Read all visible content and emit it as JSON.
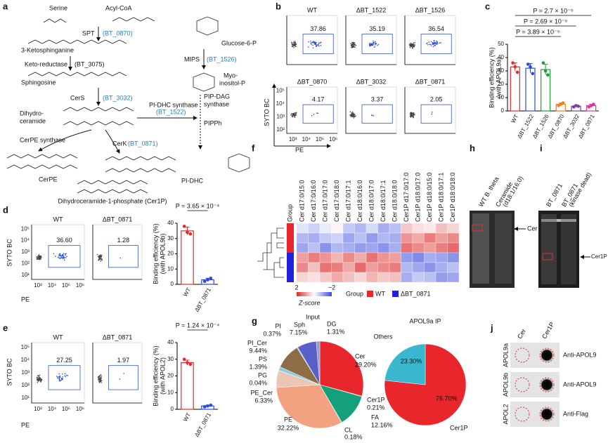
{
  "a": {
    "letter": "a",
    "labels": [
      "Serine",
      "Acyl-CoA",
      "SPT",
      "(BT_0870)",
      "3-Ketosphinganine",
      "Keto-reductase",
      "(BT_3075)",
      "Sphingosine",
      "CerS",
      "(BT_3032)",
      "Dihydro-",
      "ceramide",
      "Glucose-6-P",
      "MIPS",
      "(BT_1526)",
      "Myo-",
      "inositol-P",
      "PIP-DAG",
      "synthase",
      "PI-DHC synthase",
      "(BT_1522)",
      "PIPPh",
      "CerPE synthase",
      "CerK",
      "(BT_0871)",
      "CerPE",
      "PI-DHC",
      "Dihydroceramide-1-phosphate (Cer1P)"
    ]
  },
  "b": {
    "letter": "b",
    "y_label": "SYTO BC",
    "x_label": "PE",
    "y_ticks": [
      "10⁵",
      "10⁴",
      "10³",
      "10²"
    ],
    "x_ticks": [
      "10³",
      "10⁴",
      "10⁵",
      "10⁶"
    ],
    "plots": [
      {
        "title": "WT",
        "gate": "37.86"
      },
      {
        "title": "ΔBT_1522",
        "gate": "35.19"
      },
      {
        "title": "ΔBT_1526",
        "gate": "36.54"
      },
      {
        "title": "ΔBT_0870",
        "gate": "4.17"
      },
      {
        "title": "ΔBT_3032",
        "gate": "3.37"
      },
      {
        "title": "ΔBT_0871",
        "gate": "2.05"
      }
    ]
  },
  "c": {
    "letter": "c",
    "type": "bar",
    "y_label": [
      "Binding efficiency (%)",
      "(with APOL9a)"
    ],
    "categories": [
      "WT",
      "ΔBT_1522",
      "ΔBT_1526",
      "ΔBT_0870",
      "ΔBT_3032",
      "ΔBT_0871"
    ],
    "values": [
      33,
      32,
      31,
      5,
      3.5,
      4
    ],
    "errors": [
      3,
      3.5,
      4,
      1,
      0.7,
      1
    ],
    "points": [
      [
        36,
        33,
        29
      ],
      [
        35,
        33,
        28
      ],
      [
        36,
        30,
        27
      ],
      [
        4,
        5,
        6
      ],
      [
        3,
        4,
        3.5
      ],
      [
        3,
        4,
        5
      ]
    ],
    "colors": [
      "#e8262b",
      "#2b4bd6",
      "#1f9a3a",
      "#f07f1f",
      "#7b3fa0",
      "#d6359a"
    ],
    "ylim": [
      0,
      50
    ],
    "yticks": [
      0,
      10,
      20,
      30,
      40,
      50
    ],
    "pvalues": [
      "P = 2.7 × 10⁻⁵",
      "P = 2.69 × 10⁻⁵",
      "P = 3.89 × 10⁻⁵"
    ]
  },
  "d": {
    "letter": "d",
    "flow": {
      "y_label": "SYTO BC",
      "x_label": "PE",
      "y_ticks": [
        "10⁵",
        "10⁴",
        "10³",
        "10²",
        "10¹"
      ],
      "x_ticks": [
        "10³",
        "10⁴",
        "10⁵",
        "10⁶"
      ],
      "plots": [
        {
          "title": "WT",
          "gate": "36.60"
        },
        {
          "title": "ΔBT_0871",
          "gate": "1.28"
        }
      ]
    },
    "bars": {
      "type": "bar",
      "y_label": [
        "Binding efficiency (%)",
        "(with APOL9b)"
      ],
      "categories": [
        "WT",
        "ΔBT_0871"
      ],
      "values": [
        35,
        3
      ],
      "errors": [
        2.5,
        1
      ],
      "points": [
        [
          38,
          34,
          33
        ],
        [
          2,
          3,
          4
        ]
      ],
      "colors": [
        "#e8262b",
        "#2b4bd6"
      ],
      "ylim": [
        0,
        40
      ],
      "yticks": [
        0,
        10,
        20,
        30,
        40
      ],
      "pvalues": [
        "P = 3.65 × 10⁻⁴"
      ]
    }
  },
  "e": {
    "letter": "e",
    "flow": {
      "y_label": "SYTO BC",
      "x_label": "PE",
      "y_ticks": [
        "10⁵",
        "10⁴",
        "10³",
        "10²",
        "10¹"
      ],
      "x_ticks": [
        "10³",
        "10⁴",
        "10⁵",
        "10⁶"
      ],
      "plots": [
        {
          "title": "WT",
          "gate": "27.25"
        },
        {
          "title": "ΔBT_0871",
          "gate": "1.97"
        }
      ]
    },
    "bars": {
      "type": "bar",
      "y_label": [
        "Binding efficiency (%)",
        "(with APOL2)"
      ],
      "categories": [
        "WT",
        "ΔBT_0871"
      ],
      "values": [
        28,
        2
      ],
      "errors": [
        1.5,
        0.5
      ],
      "points": [
        [
          30,
          28,
          27
        ],
        [
          1.5,
          2,
          2.5
        ]
      ],
      "colors": [
        "#e8262b",
        "#2b4bd6"
      ],
      "ylim": [
        0,
        40
      ],
      "yticks": [
        0,
        10,
        20,
        30,
        40
      ],
      "pvalues": [
        "P = 1.24 × 10⁻⁴"
      ]
    }
  },
  "f": {
    "letter": "f",
    "type": "heatmap",
    "group_label": "Group",
    "columns": [
      "Cer d17:0/15:0",
      "Cer d17:0/16:0",
      "Cer d17:0/17:0",
      "Cer d17:0/18:0",
      "Cer d17:0/17:1",
      "Cer d18:0/16:0",
      "Cer d18:0/17:0",
      "Cer d18:0/17:1",
      "Cer d18:0/18:0",
      "Cer1P d17:0/17:0",
      "Cer1P d18:0/17:0",
      "Cer1P d18:0/15:0",
      "Cer1P d18:0/17:1",
      "Cer1P d18:0/18:0"
    ],
    "row_groups": [
      0,
      0,
      0,
      1,
      1,
      1
    ],
    "z": [
      [
        -0.3,
        -0.5,
        -0.2,
        0.1,
        -0.6,
        -0.8,
        -0.4,
        -0.9,
        -0.7,
        0.5,
        0.3,
        0.2,
        0.6,
        0.4
      ],
      [
        -0.8,
        -0.9,
        -0.6,
        -0.5,
        -1.0,
        -0.7,
        -1.1,
        -0.8,
        -0.9,
        1.0,
        0.8,
        1.2,
        0.9,
        1.1
      ],
      [
        -1.0,
        -0.7,
        -1.2,
        -0.8,
        -0.9,
        -1.1,
        -1.0,
        -1.2,
        -0.9,
        1.3,
        1.1,
        0.9,
        1.2,
        1.4
      ],
      [
        0.9,
        1.2,
        1.0,
        0.7,
        1.1,
        0.8,
        1.3,
        1.0,
        0.9,
        -1.1,
        -1.3,
        -0.9,
        -1.0,
        -1.2
      ],
      [
        1.1,
        0.6,
        1.3,
        1.2,
        0.8,
        1.4,
        0.9,
        1.1,
        1.2,
        -0.8,
        -1.0,
        -1.2,
        -0.9,
        -0.7
      ],
      [
        0.4,
        0.3,
        0.5,
        0.8,
        0.6,
        0.4,
        0.7,
        0.5,
        0.6,
        -0.9,
        -0.6,
        -0.7,
        -1.1,
        -1.0
      ]
    ],
    "groups": [
      {
        "name": "WT",
        "color": "#e8262b"
      },
      {
        "name": "ΔBT_0871",
        "color": "#2222dd"
      }
    ],
    "legend_title": "Group",
    "colorbar": {
      "ticks": [
        2,
        {
          "value": -2,
          "label": "−2"
        }
      ],
      "label": "Z-score"
    }
  },
  "g": {
    "letter": "g",
    "charts": [
      {
        "type": "pie",
        "title": "Input",
        "names": [
          "Cer",
          "Cer1P",
          "FA",
          "CL",
          "PE",
          "PE_Cer",
          "PG",
          "PS",
          "PI_Cer",
          "PI",
          "Sph",
          "DG"
        ],
        "values": [
          29.2,
          0.21,
          12.16,
          0.18,
          32.22,
          6.33,
          0.04,
          1.39,
          9.44,
          0.37,
          7.15,
          1.31
        ],
        "value_labels": [
          "29.20%",
          "0.21%",
          "12.16%",
          "0.18%",
          "32.22%",
          "6.33%",
          "0.04%",
          "1.39%",
          "9.44%",
          "0.37%",
          "7.15%",
          "1.31%"
        ],
        "colors": [
          "#e8262b",
          "#7b2a8a",
          "#14a07a",
          "#999999",
          "#f2a280",
          "#e9c7b4",
          "#555555",
          "#8ecae6",
          "#8c6d46",
          "#a9c8ea",
          "#5a5fc9",
          "#9e9ac8"
        ]
      },
      {
        "type": "pie",
        "title": "APOL9a IP",
        "names": [
          "Cer1P",
          "Others"
        ],
        "values": [
          76.7,
          23.3
        ],
        "value_labels": [
          "76.70%",
          "23.30%"
        ],
        "colors": [
          "#e8262b",
          "#3bb6cf"
        ]
      }
    ]
  },
  "h": {
    "letter": "h",
    "lanes": [
      "WT B. theta",
      "Ceramide",
      "(d18:1/16:0)"
    ],
    "band": "Cer"
  },
  "i": {
    "letter": "i",
    "lanes": [
      "BT_0871",
      "BT_0871",
      "(kinase dead)"
    ],
    "band": "Cer1P"
  },
  "j": {
    "letter": "j",
    "columns": [
      "Cer",
      "Cer1P"
    ],
    "rows": [
      {
        "name": "APOL9a",
        "antibody": "Anti-APOL9"
      },
      {
        "name": "APOL9b",
        "antibody": "Anti-APOL9"
      },
      {
        "name": "APOL2",
        "antibody": "Anti-Flag"
      }
    ]
  }
}
